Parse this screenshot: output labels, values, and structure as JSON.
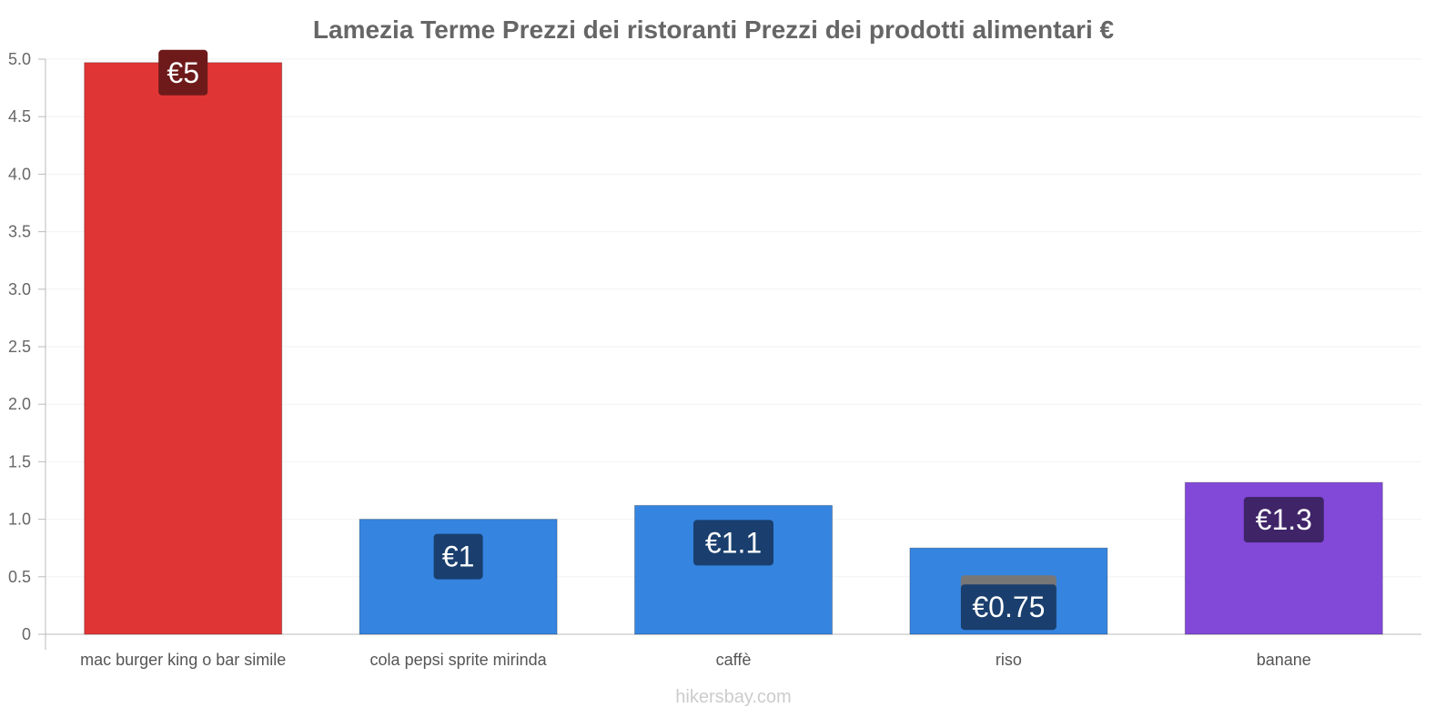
{
  "chart_data": {
    "type": "bar",
    "title": "Lamezia Terme Prezzi dei ristoranti Prezzi dei prodotti alimentari €",
    "categories": [
      "mac burger king o bar simile",
      "cola pepsi sprite mirinda",
      "caffè",
      "riso",
      "banane"
    ],
    "values": [
      4.97,
      1.0,
      1.12,
      0.75,
      1.32
    ],
    "data_labels": [
      "€5",
      "€1",
      "€1.1",
      "€0.75",
      "€1.3"
    ],
    "colors": [
      "#e03535",
      "#3584e0",
      "#3584e0",
      "#3584e0",
      "#8249d8"
    ],
    "label_colors": [
      "#6e1a1a",
      "#1a3f6e",
      "#1a3f6e",
      "#1a3f6e",
      "#3f2468"
    ],
    "yticks": [
      "0",
      "0.5",
      "1.0",
      "1.5",
      "2.0",
      "2.5",
      "3.0",
      "3.5",
      "4.0",
      "4.5",
      "5.0"
    ],
    "ylim": [
      0,
      5
    ],
    "xlabel": "",
    "ylabel": "",
    "grid": true
  },
  "watermark": "hikersbay.com"
}
